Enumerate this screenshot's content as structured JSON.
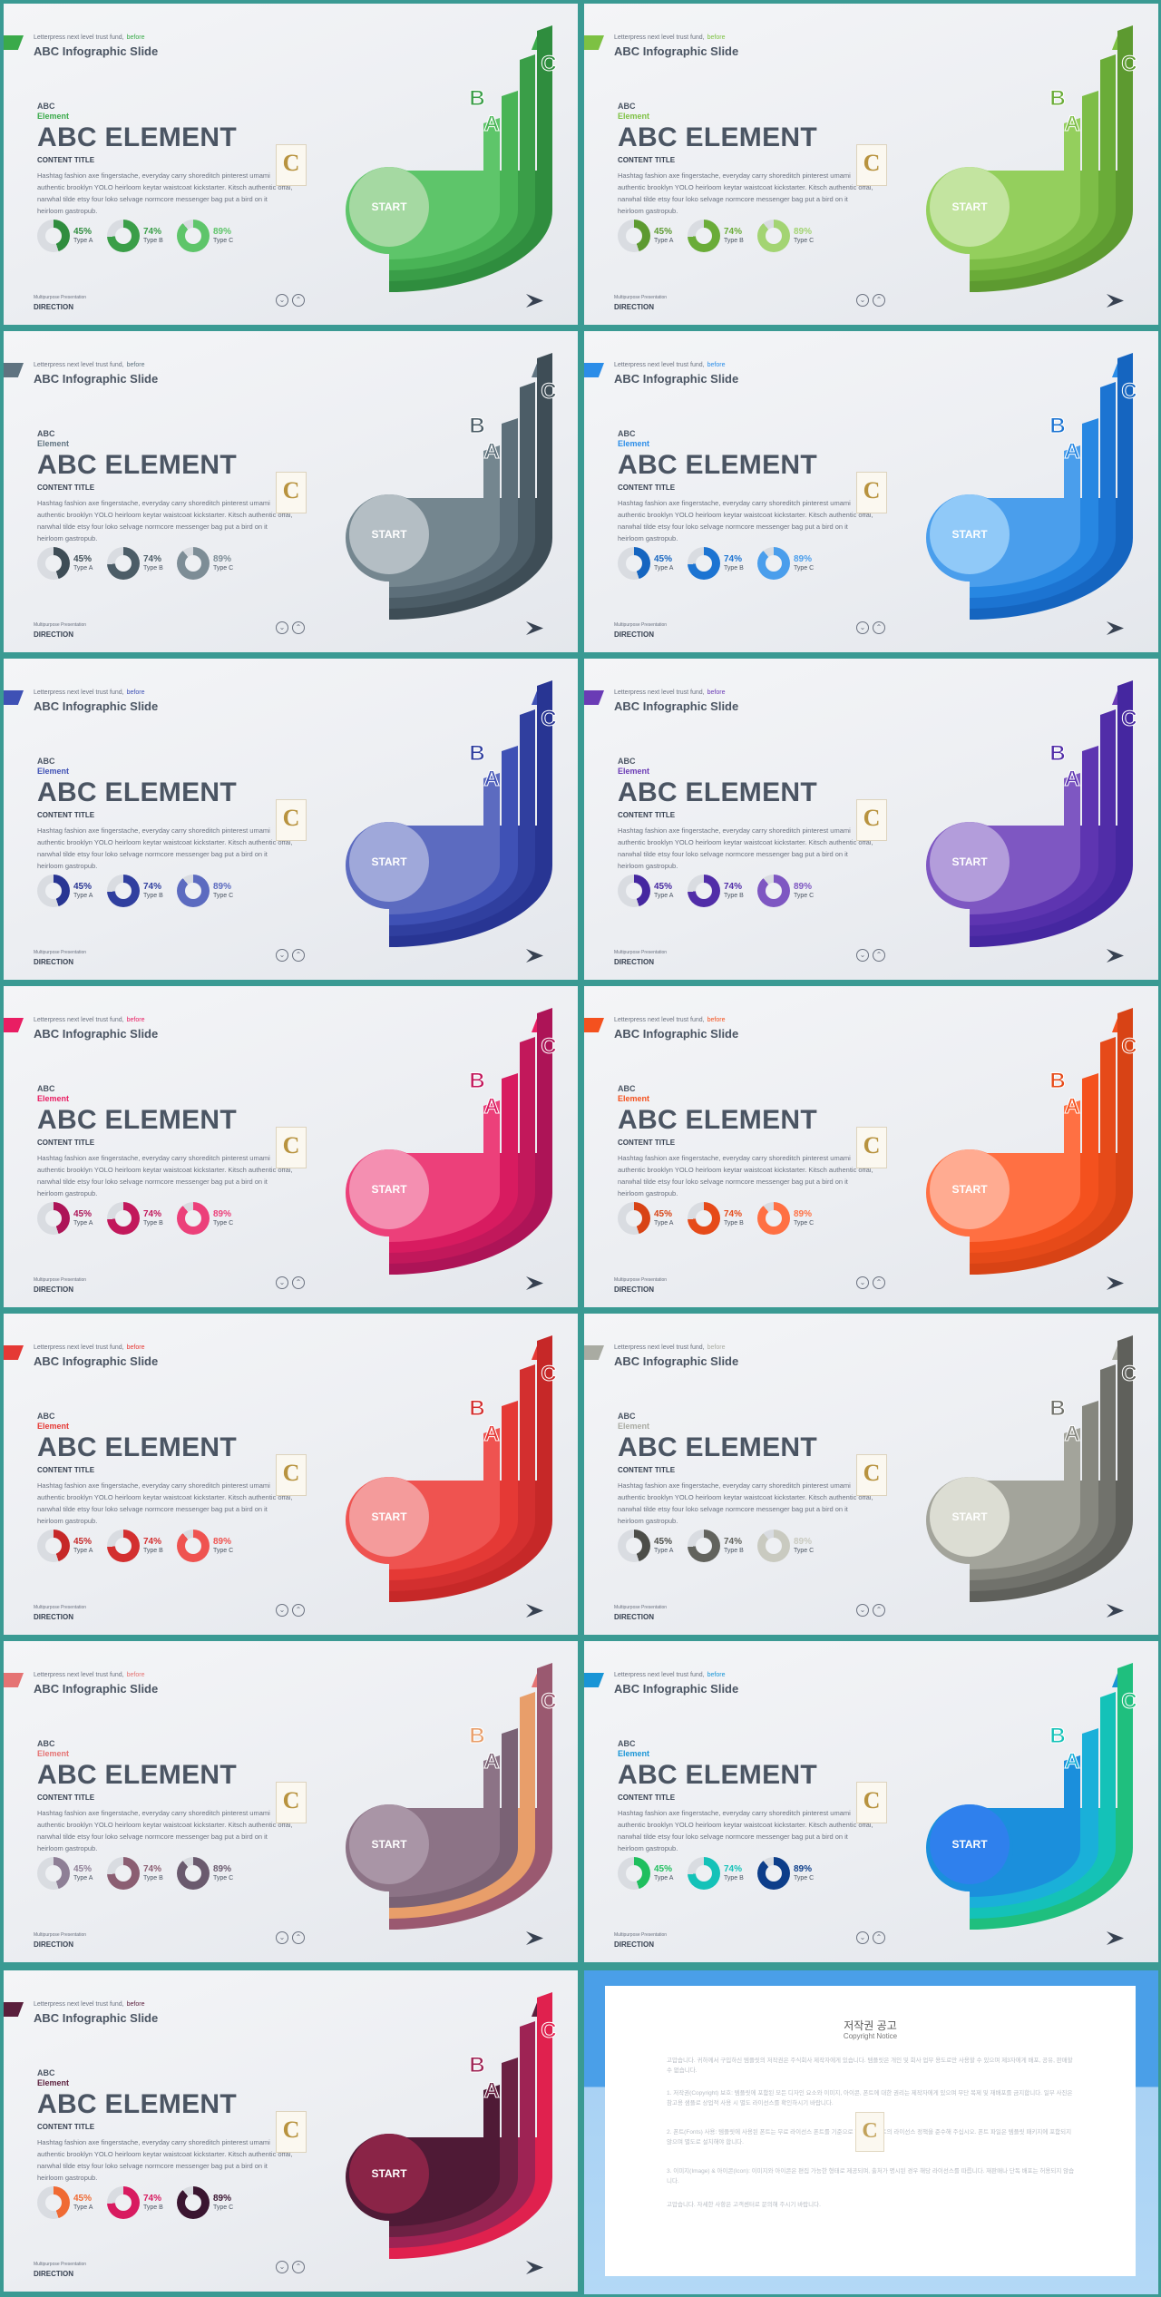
{
  "common": {
    "pre_text": "Letterpress next level trust fund,",
    "pre_accent": "before",
    "slide_title": "ABC Infographic Slide",
    "abc": "ABC",
    "element": "Element",
    "big_title": "ABC ELEMENT",
    "content_title": "CONTENT TITLE",
    "body": "Hashtag fashion axe fingerstache, everyday carry shoreditch pinterest umami authentic brooklyn YOLO heirloom keytar waistcoat kickstarter. Kitsch authentic offal, narwhal tilde etsy four loko selvage normcore messenger bag put a bird on it heirloom gastropub.",
    "footer_small": "Multipurpose Presentation",
    "footer_label": "DIRECTION",
    "start_label": "START",
    "letters": [
      "A",
      "B",
      "C"
    ],
    "logo_letter": "C",
    "stats": [
      {
        "pct": "45%",
        "label": "Type A",
        "value": 45
      },
      {
        "pct": "74%",
        "label": "Type B",
        "value": 74
      },
      {
        "pct": "89%",
        "label": "Type C",
        "value": 89
      }
    ]
  },
  "slides": [
    {
      "num": "2",
      "accent": "#3aaa4a",
      "bands": [
        "#2f8d3e",
        "#3a9e48",
        "#49b456",
        "#5ec56a"
      ],
      "circle": "#a5d9a2",
      "donuts": [
        "#2f8d3e",
        "#3a9e48",
        "#5ec56a"
      ]
    },
    {
      "num": "3",
      "accent": "#7dc143",
      "bands": [
        "#5d9a30",
        "#6aac38",
        "#7dbd47",
        "#94cf5d"
      ],
      "circle": "#c3e4a0",
      "donuts": [
        "#5d9a30",
        "#6aac38",
        "#a3d473"
      ]
    },
    {
      "num": "4",
      "accent": "#5f7380",
      "bands": [
        "#3e4d56",
        "#4c5d67",
        "#5d6f7a",
        "#74868f"
      ],
      "circle": "#b4bec4",
      "donuts": [
        "#3e4d56",
        "#4c5d67",
        "#7d8d96"
      ]
    },
    {
      "num": "5",
      "accent": "#2b8de8",
      "bands": [
        "#1565c0",
        "#1c74d2",
        "#2787e2",
        "#4a9eec"
      ],
      "circle": "#90c9f8",
      "donuts": [
        "#1565c0",
        "#1c74d2",
        "#4a9eec"
      ]
    },
    {
      "num": "6",
      "accent": "#3f51b5",
      "bands": [
        "#283593",
        "#303f9f",
        "#3f51b5",
        "#5c6bc0"
      ],
      "circle": "#9fa8da",
      "donuts": [
        "#283593",
        "#303f9f",
        "#5c6bc0"
      ]
    },
    {
      "num": "7",
      "accent": "#6a3bb5",
      "bands": [
        "#4527a0",
        "#512da8",
        "#5e35b1",
        "#7e57c2"
      ],
      "circle": "#b39ddb",
      "donuts": [
        "#4527a0",
        "#512da8",
        "#7e57c2"
      ]
    },
    {
      "num": "8",
      "accent": "#e91e63",
      "bands": [
        "#ad1457",
        "#c2185b",
        "#d81b60",
        "#ec407a"
      ],
      "circle": "#f48fb1",
      "donuts": [
        "#ad1457",
        "#c2185b",
        "#ec407a"
      ]
    },
    {
      "num": "9",
      "accent": "#f4511e",
      "bands": [
        "#d84315",
        "#e64a19",
        "#f4511e",
        "#ff7043"
      ],
      "circle": "#ffab91",
      "donuts": [
        "#d84315",
        "#e64a19",
        "#ff7043"
      ]
    },
    {
      "num": "10",
      "accent": "#e53935",
      "bands": [
        "#c62828",
        "#d32f2f",
        "#e53935",
        "#ef5350"
      ],
      "circle": "#f49b9b",
      "donuts": [
        "#c62828",
        "#d32f2f",
        "#ef5350"
      ]
    },
    {
      "num": "11",
      "accent": "#a9aba2",
      "bands": [
        "#5f605b",
        "#71726c",
        "#86877f",
        "#a3a49b"
      ],
      "circle": "#dcddd3",
      "donuts": [
        "#4c4d48",
        "#62635d",
        "#c9cac0"
      ]
    },
    {
      "num": "12",
      "accent": "#e57373",
      "bands": [
        "#9a5970",
        "#e89e6a",
        "#7a6275",
        "#8c7386"
      ],
      "circle": "#a995a6",
      "donuts": [
        "#8e7f96",
        "#8b5e72",
        "#6a5a6e"
      ]
    },
    {
      "num": "13",
      "accent": "#1995d6",
      "bands": [
        "#1fbf7e",
        "#14c2b8",
        "#1ab0d9",
        "#1b8fdc"
      ],
      "circle": "#2f80ed",
      "donuts": [
        "#1fbf5e",
        "#14c2b8",
        "#0d3e8a"
      ]
    },
    {
      "num": "14",
      "accent": "#5a1f3c",
      "bands": [
        "#e0214e",
        "#9e2354",
        "#6b2143",
        "#4f1a36"
      ],
      "circle": "#8a2447",
      "donuts": [
        "#f06a33",
        "#d81b60",
        "#3a1530"
      ]
    }
  ],
  "notice": {
    "title": "저작권 공고",
    "subtitle": "Copyright Notice",
    "p1": "고맙습니다. 귀하께서 구입하신 템플릿의 저작권은 주식회사 제작자에게 있습니다. 템플릿은 개인 및 회사 업무 용도로만 사용할 수 있으며 제3자에게 배포, 공유, 판매할 수 없습니다.",
    "p2": "1. 저작권(Copyright) 보호: 템플릿에 포함된 모든 디자인 요소와 이미지, 아이콘, 폰트에 대한 권리는 제작자에게 있으며 무단 복제 및 재배포를 금지합니다. 일부 사진은 참고용 샘플로 상업적 사용 시 별도 라이선스를 확인하시기 바랍니다.",
    "p3": "2. 폰트(Fonts) 사용: 템플릿에 사용된 폰트는 무료 라이선스 폰트를 기준으로 하며, 각 폰트의 라이선스 정책을 준수해 주십시오. 폰트 파일은 템플릿 패키지에 포함되지 않으며 별도로 설치해야 합니다.",
    "p4": "3. 이미지(Image) & 아이콘(Icon): 이미지와 아이콘은 편집 가능한 형태로 제공되며, 출처가 명시된 경우 해당 라이선스를 따릅니다. 재판매나 단독 배포는 허용되지 않습니다.",
    "p5": "고맙습니다. 자세한 사항은 고객센터로 문의해 주시기 바랍니다."
  }
}
